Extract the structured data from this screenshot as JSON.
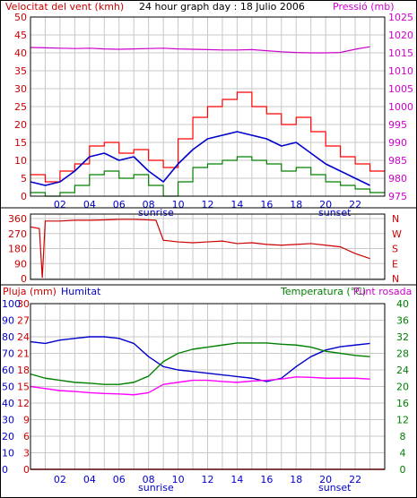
{
  "page_title": "24 hour graph day : 18 Julio 2006",
  "colors": {
    "frame": "#000000",
    "grid": "#c8c8c8",
    "wind": "#ff0000",
    "wind_avg": "#0000cc",
    "wind_gust": "#ff0000",
    "wind_low": "#008000",
    "pressure": "#cc00cc",
    "direction": "#cc0000",
    "humidity": "#0000cc",
    "temperature": "#008000",
    "dewpoint": "#ff00ff",
    "rain": "#ff0000",
    "label_red": "#cc0000",
    "label_magenta": "#cc00cc",
    "label_blue": "#0000cc",
    "label_green": "#008000"
  },
  "chart_data": [
    {
      "type": "line",
      "title": "24 hour graph day : 18 Julio 2006",
      "left_label": "Velocitat del vent (kmh)",
      "right_label": "Pressió (mb)",
      "x_ticks": [
        "02",
        "04",
        "06",
        "08",
        "10",
        "12",
        "14",
        "16",
        "18",
        "20",
        "22"
      ],
      "x_extra_labels": [
        "sunrise",
        "sunset"
      ],
      "left_axis": {
        "min": 0,
        "max": 50,
        "ticks": [
          "0",
          "5",
          "10",
          "15",
          "20",
          "25",
          "30",
          "35",
          "40",
          "45",
          "50"
        ]
      },
      "right_axis": {
        "min": 975,
        "max": 1025,
        "ticks": [
          "975",
          "980",
          "985",
          "990",
          "995",
          "1000",
          "1005",
          "1010",
          "1015",
          "1020",
          "1025"
        ]
      },
      "hours": [
        0,
        1,
        2,
        3,
        4,
        5,
        6,
        7,
        8,
        9,
        10,
        11,
        12,
        13,
        14,
        15,
        16,
        17,
        18,
        19,
        20,
        21,
        22,
        23
      ],
      "series": [
        {
          "key": "wind_gust",
          "values": [
            6,
            4,
            7,
            9,
            14,
            15,
            12,
            13,
            10,
            8,
            16,
            22,
            25,
            27,
            29,
            25,
            23,
            20,
            22,
            18,
            14,
            11,
            9,
            7
          ]
        },
        {
          "key": "wind_avg",
          "values": [
            4,
            3,
            4,
            7,
            11,
            12,
            10,
            11,
            7,
            4,
            9,
            13,
            16,
            17,
            18,
            17,
            16,
            14,
            15,
            12,
            9,
            7,
            5,
            3
          ]
        },
        {
          "key": "wind_low",
          "values": [
            1,
            0,
            1,
            3,
            6,
            7,
            5,
            6,
            3,
            0,
            4,
            8,
            9,
            10,
            11,
            10,
            9,
            7,
            8,
            6,
            4,
            3,
            2,
            1
          ]
        },
        {
          "key": "pressure",
          "values": [
            1016.5,
            1016.4,
            1016.3,
            1016.2,
            1016.3,
            1016.1,
            1016.0,
            1016.1,
            1016.2,
            1016.3,
            1016.1,
            1016.0,
            1015.9,
            1015.8,
            1015.8,
            1015.9,
            1015.6,
            1015.3,
            1015.1,
            1015.0,
            1015.0,
            1015.1,
            1016.0,
            1016.7
          ]
        }
      ]
    },
    {
      "type": "line",
      "left_axis": {
        "ticks": [
          "360",
          "270",
          "180",
          "90",
          "0"
        ],
        "min": 0,
        "max": 360
      },
      "right_ticks": [
        "N",
        "W",
        "S",
        "E",
        "N"
      ],
      "hours": [
        0,
        0.6,
        0.8,
        1,
        2,
        3,
        4,
        5,
        6,
        7,
        8,
        8.5,
        9,
        10,
        11,
        12,
        13,
        14,
        15,
        16,
        17,
        18,
        19,
        20,
        21,
        22,
        23
      ],
      "series": [
        {
          "key": "direction",
          "values": [
            310,
            300,
            5,
            345,
            345,
            350,
            350,
            352,
            355,
            355,
            352,
            350,
            230,
            220,
            215,
            220,
            225,
            210,
            215,
            205,
            200,
            205,
            210,
            200,
            190,
            150,
            120
          ]
        }
      ]
    },
    {
      "type": "line",
      "title_left": "Pluja (mm)",
      "title_mid": "Humitat",
      "title_right": "Temperatura (°C)",
      "title_right2": "Punt rosada",
      "rain_axis": {
        "ticks": [
          "0",
          "3",
          "6",
          "9",
          "12",
          "15",
          "18",
          "21",
          "24",
          "27",
          "30"
        ],
        "min": 0,
        "max": 30
      },
      "humidity_axis": {
        "ticks": [
          "0",
          "10",
          "20",
          "30",
          "40",
          "50",
          "60",
          "70",
          "80",
          "90",
          "100"
        ],
        "min": 0,
        "max": 100
      },
      "temp_axis": {
        "ticks": [
          "0",
          "4",
          "8",
          "12",
          "16",
          "20",
          "24",
          "28",
          "32",
          "36",
          "40"
        ],
        "min": 0,
        "max": 40
      },
      "x_ticks": [
        "02",
        "04",
        "06",
        "08",
        "10",
        "12",
        "14",
        "16",
        "18",
        "20",
        "22"
      ],
      "x_extra_labels": [
        "sunrise",
        "sunset"
      ],
      "hours": [
        0,
        1,
        2,
        3,
        4,
        5,
        6,
        7,
        8,
        9,
        10,
        11,
        12,
        13,
        14,
        15,
        16,
        17,
        18,
        19,
        20,
        21,
        22,
        23
      ],
      "series": [
        {
          "key": "humidity",
          "values": [
            77,
            76,
            78,
            79,
            80,
            80,
            79,
            76,
            68,
            62,
            60,
            59,
            58,
            57,
            56,
            55,
            53,
            55,
            62,
            68,
            72,
            74,
            75,
            76
          ]
        },
        {
          "key": "temperature",
          "values": [
            23,
            22,
            21.5,
            21,
            20.8,
            20.5,
            20.5,
            21,
            22.5,
            26,
            28,
            29,
            29.5,
            30,
            30.5,
            30.5,
            30.5,
            30.2,
            30,
            29.5,
            28.5,
            28,
            27.5,
            27.2
          ]
        },
        {
          "key": "dewpoint",
          "values": [
            20,
            19.5,
            19,
            18.8,
            18.5,
            18.3,
            18.2,
            18,
            18.5,
            20.5,
            21,
            21.5,
            21.5,
            21.2,
            21,
            21.3,
            21.5,
            21.8,
            22.3,
            22.2,
            22,
            22,
            22,
            21.8
          ]
        },
        {
          "key": "rain",
          "values": [
            0,
            0,
            0,
            0,
            0,
            0,
            0,
            0,
            0,
            0,
            0,
            0,
            0,
            0,
            0,
            0,
            0,
            0,
            0,
            0,
            0,
            0,
            0,
            0
          ]
        }
      ]
    }
  ]
}
